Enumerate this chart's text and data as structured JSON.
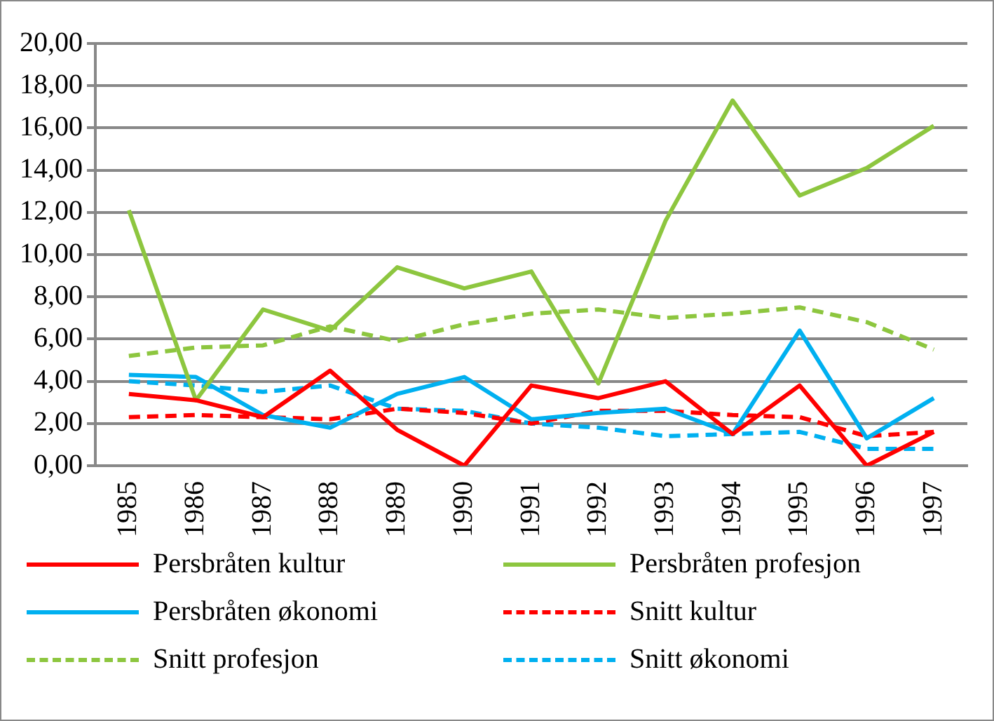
{
  "chart_data": {
    "type": "line",
    "categories": [
      "1985",
      "1986",
      "1987",
      "1988",
      "1989",
      "1990",
      "1991",
      "1992",
      "1993",
      "1994",
      "1995",
      "1996",
      "1997"
    ],
    "ylim": [
      0,
      20
    ],
    "yticks": [
      {
        "value": 0,
        "label": "0,00"
      },
      {
        "value": 2,
        "label": "2,00"
      },
      {
        "value": 4,
        "label": "4,00"
      },
      {
        "value": 6,
        "label": "6,00"
      },
      {
        "value": 8,
        "label": "8,00"
      },
      {
        "value": 10,
        "label": "10,00"
      },
      {
        "value": 12,
        "label": "12,00"
      },
      {
        "value": 14,
        "label": "14,00"
      },
      {
        "value": 16,
        "label": "16,00"
      },
      {
        "value": 18,
        "label": "18,00"
      },
      {
        "value": 20,
        "label": "20,00"
      }
    ],
    "grid": "y",
    "legend": "bottom",
    "marker": "none",
    "series": [
      {
        "name": "Persbråten kultur",
        "color": "#ff0000",
        "line_style": "solid",
        "values": [
          3.4,
          3.1,
          2.3,
          4.5,
          1.7,
          0,
          3.8,
          3.2,
          4.0,
          1.5,
          3.8,
          0,
          1.6
        ]
      },
      {
        "name": "Persbråten profesjon",
        "color": "#8dc63f",
        "line_style": "solid",
        "values": [
          12.1,
          3.1,
          7.4,
          6.4,
          9.4,
          8.4,
          9.2,
          3.9,
          11.6,
          17.3,
          12.8,
          14.1,
          16.1
        ]
      },
      {
        "name": "Persbråten økonomi",
        "color": "#00b0f0",
        "line_style": "solid",
        "values": [
          4.3,
          4.2,
          2.4,
          1.8,
          3.4,
          4.2,
          2.2,
          2.5,
          2.7,
          1.5,
          6.4,
          1.3,
          3.2
        ]
      },
      {
        "name": "Snitt kultur",
        "color": "#ff0000",
        "line_style": "dashed",
        "values": [
          2.3,
          2.4,
          2.3,
          2.2,
          2.7,
          2.5,
          2.0,
          2.6,
          2.6,
          2.4,
          2.3,
          1.4,
          1.6
        ]
      },
      {
        "name": "Snitt profesjon",
        "color": "#8dc63f",
        "line_style": "dashed",
        "values": [
          5.2,
          5.6,
          5.7,
          6.6,
          5.9,
          6.7,
          7.2,
          7.4,
          7.0,
          7.2,
          7.5,
          6.8,
          5.5
        ]
      },
      {
        "name": "Snitt økonomi",
        "color": "#00b0f0",
        "line_style": "dashed",
        "values": [
          4.0,
          3.8,
          3.5,
          3.8,
          2.7,
          2.6,
          2.0,
          1.8,
          1.4,
          1.5,
          1.6,
          0.8,
          0.8
        ]
      }
    ]
  }
}
